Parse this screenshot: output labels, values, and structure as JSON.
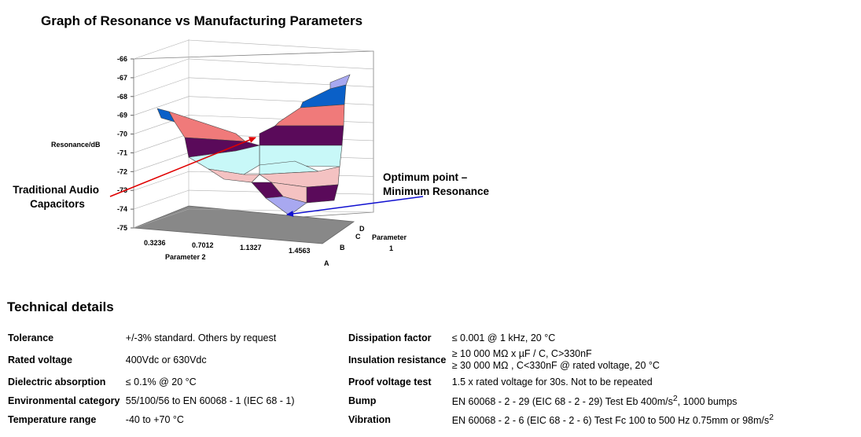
{
  "chart_data": {
    "type": "surface-3d",
    "title": "Graph of Resonance vs Manufacturing Parameters",
    "ylabel": "Resonance/dB",
    "zticks": [
      "-66",
      "-67",
      "-68",
      "-69",
      "-70",
      "-71",
      "-72",
      "-73",
      "-74",
      "-75"
    ],
    "zlim": [
      -75,
      -66
    ],
    "xlabel": "Parameter 2",
    "xticks": [
      "0.3236",
      "0.7012",
      "1.1327",
      "1.4563"
    ],
    "depth_label": [
      "Parameter",
      "1"
    ],
    "depth_ticks": [
      "A",
      "B",
      "C",
      "D"
    ],
    "colors": {
      "wall": "#ffffff",
      "floor": "#888888",
      "blue": "#0a60c8",
      "salmon": "#f07a7a",
      "purple": "#5a0a5a",
      "cyan": "#c8f8f8",
      "pink": "#f4c2c2",
      "lavender": "#a8a8f0"
    }
  },
  "annotations": {
    "left": [
      "Traditional Audio",
      "Capacitors"
    ],
    "right": [
      "Optimum point –",
      "Minimum Resonance"
    ]
  },
  "section_title": "Technical details",
  "specs": [
    {
      "l1": "Tolerance",
      "v1": "+/-3% standard. Others by request",
      "l2": "Dissipation factor",
      "v2": "≤ 0.001 @ 1 kHz, 20 °C"
    },
    {
      "l1": "Rated voltage",
      "v1": "400Vdc or 630Vdc",
      "l2": "Insulation resistance",
      "v2": "≥ 10 000 MΩ x µF / C, C>330nF",
      "v2b": "≥ 30 000 MΩ , C<330nF @ rated voltage, 20 °C"
    },
    {
      "l1": "Dielectric absorption",
      "v1": "≤ 0.1% @ 20 °C",
      "l2": "Proof voltage test",
      "v2": "1.5 x rated voltage for 30s. Not to be repeated"
    },
    {
      "l1": "Environmental category",
      "v1": "55/100/56 to EN 60068 - 1 (IEC 68 - 1)",
      "l2": "Bump",
      "v2": "EN 60068 - 2 - 29 (EIC 68 - 2 - 29) Test Eb 400m/s",
      "v2sup": "2",
      "v2tail": ", 1000 bumps"
    },
    {
      "l1": "Temperature range",
      "v1": "-40 to +70 °C",
      "l2": "Vibration",
      "v2": "EN 60068 - 2 - 6 (EIC 68 - 2 - 6) Test Fc 100 to 500 Hz 0.75mm or 98m/s",
      "v2sup": "2"
    }
  ]
}
